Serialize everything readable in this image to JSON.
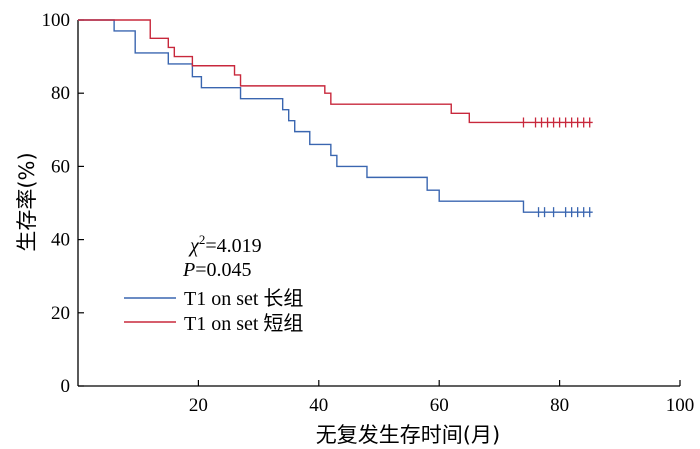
{
  "chart_data": {
    "type": "line",
    "subtype": "kaplan-meier step",
    "xlabel": "无复发生存时间(月)",
    "ylabel": "生存率(%)",
    "xlim": [
      0,
      100
    ],
    "ylim": [
      0,
      100
    ],
    "x_ticks": [
      20,
      40,
      60,
      80,
      100
    ],
    "y_ticks": [
      0,
      20,
      40,
      60,
      80,
      100
    ],
    "x_tick_labels": [
      "20",
      "40",
      "60",
      "80",
      "100"
    ],
    "y_tick_labels": [
      "0",
      "20",
      "40",
      "60",
      "80",
      "100"
    ],
    "grid": false,
    "legend_position": "left-middle",
    "annotation": {
      "chi_symbol": "χ",
      "chi_exponent": "2",
      "chi_value": "=4.019",
      "p_symbol": "P",
      "p_value": "=0.045"
    },
    "series": [
      {
        "name": "T1 on set 长组",
        "color": "#3a66b0",
        "steps": [
          [
            0,
            100
          ],
          [
            6,
            97
          ],
          [
            9.5,
            91
          ],
          [
            15,
            88
          ],
          [
            19,
            84.5
          ],
          [
            20.5,
            81.5
          ],
          [
            27,
            78.5
          ],
          [
            34,
            75.5
          ],
          [
            35,
            72.5
          ],
          [
            36,
            69.5
          ],
          [
            38.5,
            66
          ],
          [
            42,
            63
          ],
          [
            43,
            60
          ],
          [
            48,
            57
          ],
          [
            58,
            53.5
          ],
          [
            60,
            50.5
          ],
          [
            74,
            47.5
          ],
          [
            85.5,
            47.5
          ]
        ],
        "censor_marks": [
          76.5,
          77.5,
          79,
          81,
          82,
          83,
          84,
          85
        ]
      },
      {
        "name": "T1 on set 短组",
        "color": "#c8283c",
        "steps": [
          [
            0,
            100
          ],
          [
            12,
            95
          ],
          [
            15,
            92.5
          ],
          [
            16,
            90
          ],
          [
            19,
            87.5
          ],
          [
            26,
            85
          ],
          [
            27,
            82
          ],
          [
            41,
            80
          ],
          [
            42,
            77
          ],
          [
            62,
            74.5
          ],
          [
            65,
            72
          ],
          [
            85.5,
            72
          ]
        ],
        "censor_marks": [
          74,
          76,
          77,
          78,
          79,
          80,
          81,
          82,
          83,
          84,
          85
        ]
      }
    ]
  }
}
